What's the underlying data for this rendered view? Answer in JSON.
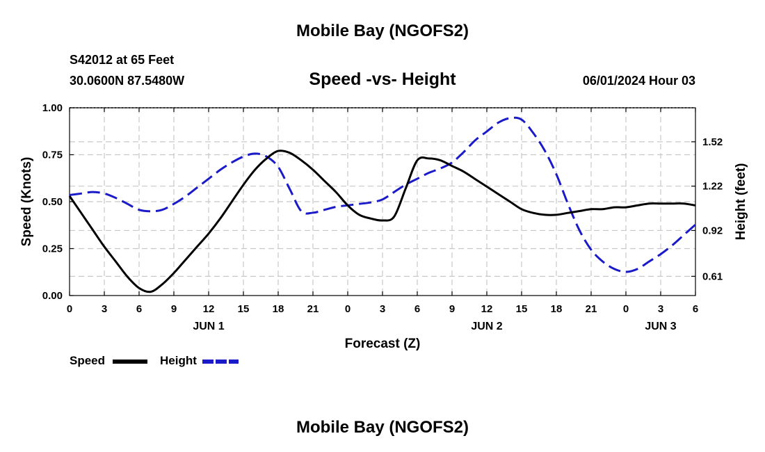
{
  "header": {
    "title": "Mobile Bay (NGOFS2)",
    "station": "S42012 at 65 Feet",
    "coords": "30.0600N  87.5480W",
    "datetime": "06/01/2024 Hour 03"
  },
  "footer": {
    "title": "Mobile Bay (NGOFS2)"
  },
  "chart_data": {
    "type": "line",
    "title": "Speed -vs- Height",
    "xlabel": "Forecast (Z)",
    "ylabel": "Speed (Knots)",
    "y2label": "Height (feet)",
    "xlim": [
      0,
      54
    ],
    "ylim": [
      0,
      1.0
    ],
    "y2lim": [
      0.48,
      1.75
    ],
    "x_tick_labels": [
      "0",
      "3",
      "6",
      "9",
      "12",
      "15",
      "18",
      "21",
      "0",
      "3",
      "6",
      "9",
      "12",
      "15",
      "18",
      "21",
      "0",
      "3",
      "6"
    ],
    "date_labels": [
      {
        "label": "JUN 1",
        "x": 12
      },
      {
        "label": "JUN 2",
        "x": 36
      },
      {
        "label": "JUN 3",
        "x": 51
      }
    ],
    "y_ticks": [
      "0.00",
      "0.25",
      "0.50",
      "0.75",
      "1.00"
    ],
    "y2_ticks": [
      "0.61",
      "0.92",
      "1.22",
      "1.52"
    ],
    "grid": true,
    "legend_position": "bottom-left",
    "series": [
      {
        "name": "Speed",
        "axis": "left",
        "color": "#000000",
        "style": "solid",
        "x": [
          0,
          1,
          2,
          3,
          4,
          5,
          6,
          7,
          8,
          9,
          10,
          11,
          12,
          13,
          14,
          15,
          16,
          17,
          18,
          19,
          20,
          21,
          22,
          23,
          24,
          25,
          26,
          27,
          28,
          29,
          30,
          31,
          32,
          33,
          34,
          35,
          36,
          37,
          38,
          39,
          40,
          41,
          42,
          43,
          44,
          45,
          46,
          47,
          48,
          49,
          50,
          51,
          52,
          53,
          54
        ],
        "values": [
          0.53,
          0.44,
          0.35,
          0.26,
          0.18,
          0.1,
          0.04,
          0.02,
          0.06,
          0.12,
          0.19,
          0.26,
          0.33,
          0.41,
          0.5,
          0.59,
          0.67,
          0.73,
          0.77,
          0.76,
          0.72,
          0.67,
          0.61,
          0.55,
          0.48,
          0.43,
          0.41,
          0.4,
          0.42,
          0.57,
          0.72,
          0.73,
          0.72,
          0.69,
          0.66,
          0.62,
          0.58,
          0.54,
          0.5,
          0.46,
          0.44,
          0.43,
          0.43,
          0.44,
          0.45,
          0.46,
          0.46,
          0.47,
          0.47,
          0.48,
          0.49,
          0.49,
          0.49,
          0.49,
          0.48
        ]
      },
      {
        "name": "Height",
        "axis": "right",
        "color": "#1a1ac8",
        "style": "dashed",
        "x": [
          0,
          1,
          2,
          3,
          4,
          5,
          6,
          7,
          8,
          9,
          10,
          11,
          12,
          13,
          14,
          15,
          16,
          17,
          18,
          19,
          20,
          21,
          22,
          23,
          24,
          25,
          26,
          27,
          28,
          29,
          30,
          31,
          32,
          33,
          34,
          35,
          36,
          37,
          38,
          39,
          40,
          41,
          42,
          43,
          44,
          45,
          46,
          47,
          48,
          49,
          50,
          51,
          52,
          53,
          54
        ],
        "values": [
          1.16,
          1.17,
          1.18,
          1.17,
          1.14,
          1.1,
          1.06,
          1.05,
          1.06,
          1.1,
          1.15,
          1.21,
          1.27,
          1.33,
          1.38,
          1.42,
          1.44,
          1.42,
          1.35,
          1.2,
          1.05,
          1.04,
          1.06,
          1.08,
          1.09,
          1.1,
          1.11,
          1.13,
          1.18,
          1.23,
          1.27,
          1.31,
          1.34,
          1.38,
          1.45,
          1.53,
          1.59,
          1.65,
          1.68,
          1.67,
          1.58,
          1.46,
          1.3,
          1.1,
          0.92,
          0.79,
          0.71,
          0.66,
          0.64,
          0.66,
          0.71,
          0.76,
          0.82,
          0.89,
          0.96
        ]
      }
    ]
  }
}
